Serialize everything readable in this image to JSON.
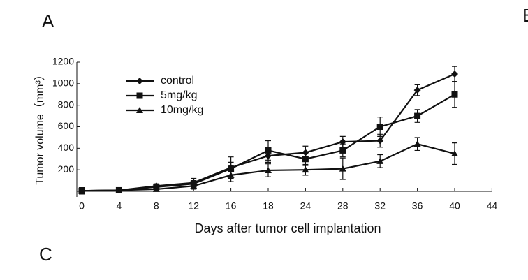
{
  "panel_labels": [
    "A",
    "B",
    "C"
  ],
  "chart_data": {
    "type": "line",
    "ylabel": "Tumor volume（mm³）",
    "xlabel": "Days after tumor cell implantation",
    "categories": [
      "0",
      "4",
      "8",
      "12",
      "16",
      "18",
      "24",
      "28",
      "32",
      "36",
      "40",
      "44"
    ],
    "ylim": [
      0,
      1200
    ],
    "yticks": [
      200,
      400,
      600,
      800,
      1000,
      1200
    ],
    "series": [
      {
        "name": "control",
        "marker": "diamond",
        "color": "#111111",
        "values": [
          5,
          10,
          50,
          80,
          220,
          330,
          360,
          460,
          470,
          940,
          1090,
          null
        ],
        "errors": [
          30,
          10,
          20,
          40,
          100,
          60,
          60,
          50,
          60,
          50,
          70,
          null
        ]
      },
      {
        "name": "5mg/kg",
        "marker": "square",
        "color": "#111111",
        "values": [
          5,
          10,
          40,
          70,
          210,
          380,
          300,
          380,
          600,
          700,
          900,
          null
        ],
        "errors": [
          30,
          10,
          20,
          30,
          60,
          90,
          60,
          60,
          90,
          60,
          120,
          null
        ]
      },
      {
        "name": "10mg/kg",
        "marker": "triangle",
        "color": "#111111",
        "values": [
          5,
          10,
          20,
          50,
          150,
          195,
          200,
          210,
          280,
          440,
          350,
          null
        ],
        "errors": [
          30,
          10,
          20,
          30,
          60,
          60,
          50,
          100,
          60,
          60,
          100,
          null
        ]
      }
    ]
  }
}
